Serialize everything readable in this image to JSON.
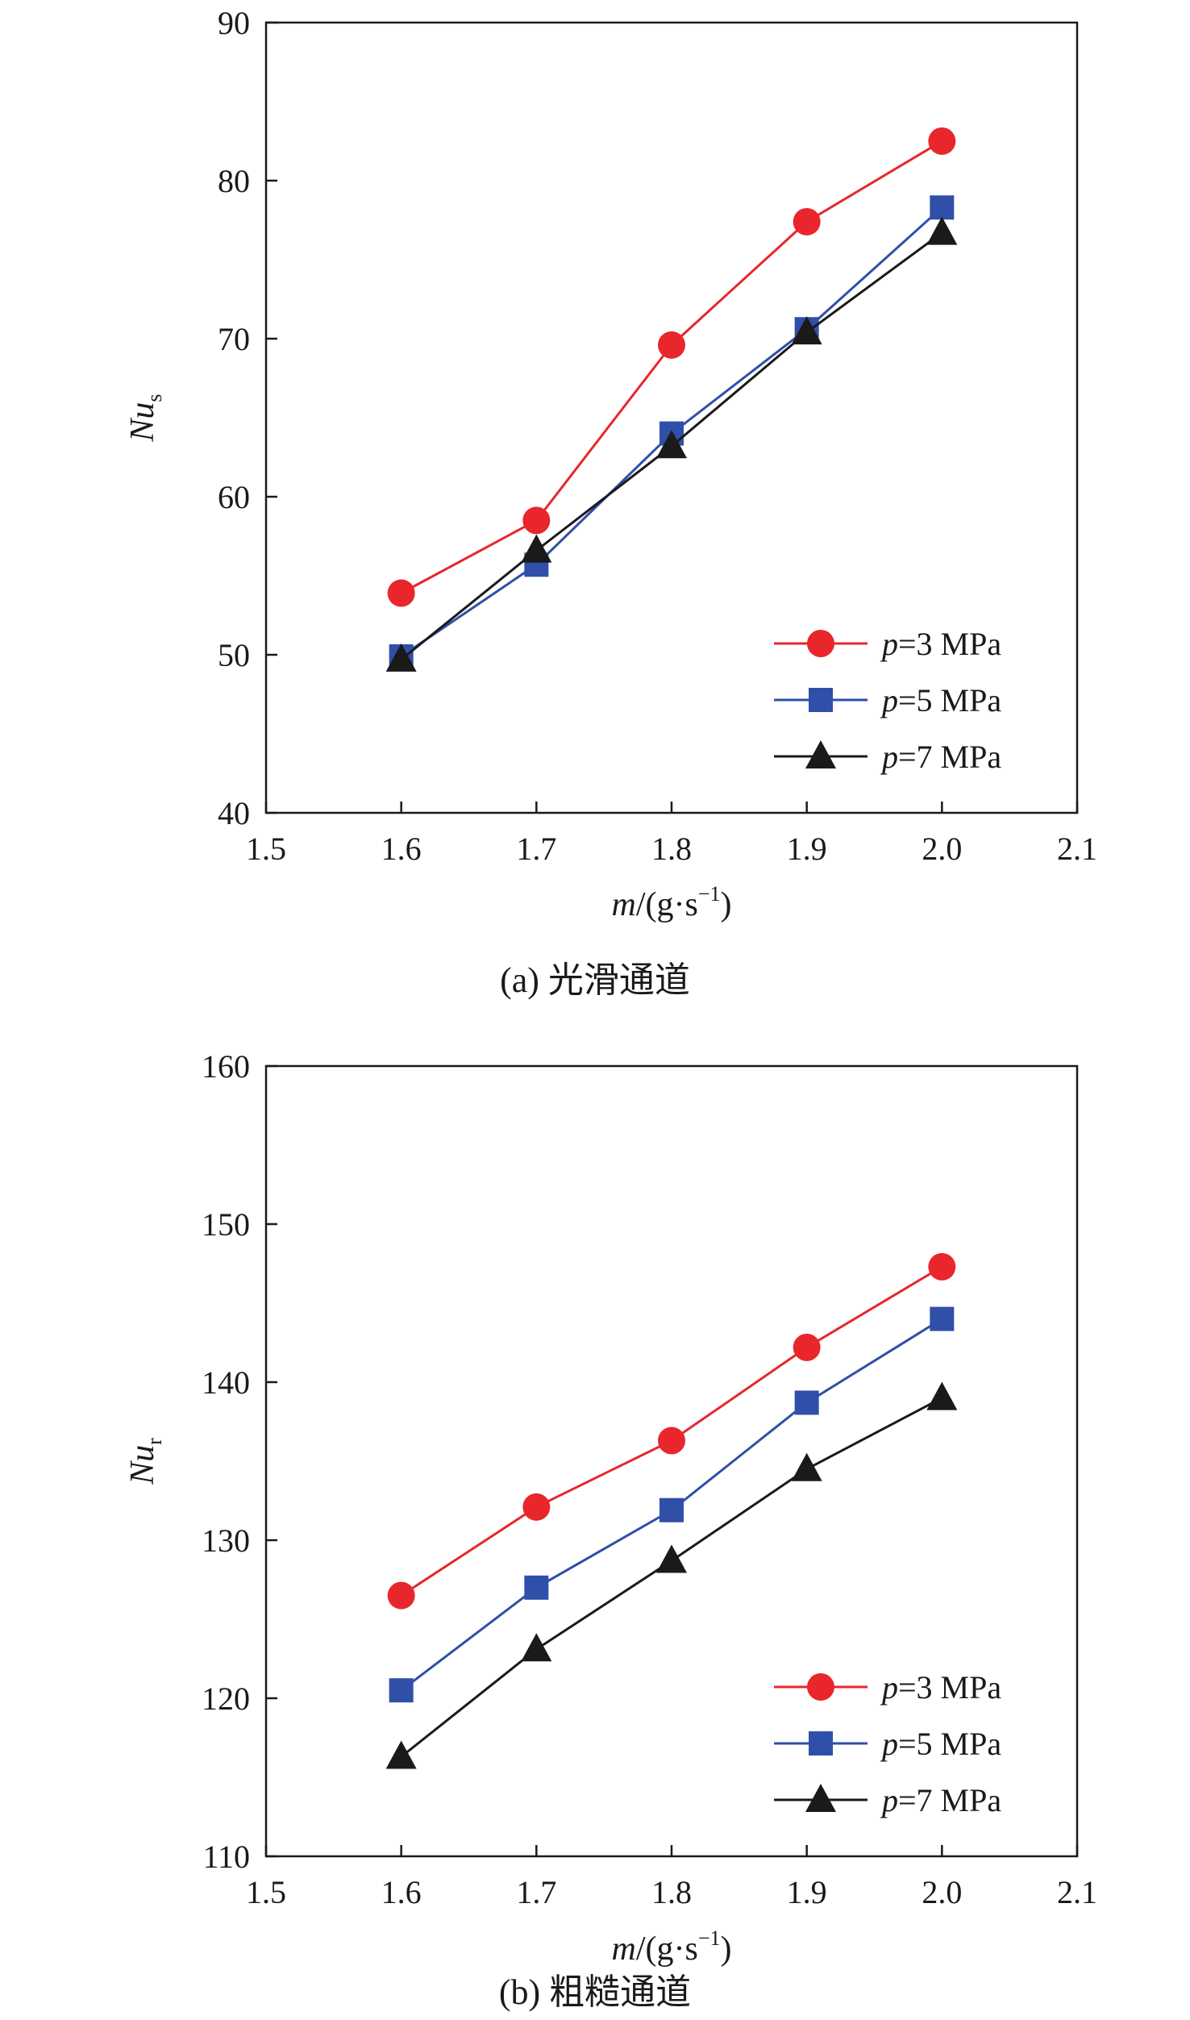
{
  "colors": {
    "series_3mpa": "#e8262b",
    "series_5mpa": "#2f4fa8",
    "series_7mpa": "#1a1a1a"
  },
  "chart_data": [
    {
      "type": "line",
      "caption": "(a) 光滑通道",
      "xlabel_var": "m",
      "xlabel_unit": "/(g·s",
      "xlabel_exp": "−1",
      "xlabel_close": ")",
      "ylabel_var": "Nu",
      "ylabel_sub": "s",
      "xlim": [
        1.5,
        2.1
      ],
      "ylim": [
        40,
        90
      ],
      "xticks": [
        "1.5",
        "1.6",
        "1.7",
        "1.8",
        "1.9",
        "2.0",
        "2.1"
      ],
      "yticks": [
        "40",
        "50",
        "60",
        "70",
        "80",
        "90"
      ],
      "x": [
        1.6,
        1.7,
        1.8,
        1.9,
        2.0
      ],
      "legend_position": "bottom-right",
      "series": [
        {
          "name_var": "p",
          "name_rest": "=3 MPa",
          "marker": "circle",
          "color_key": "series_3mpa",
          "values": [
            53.9,
            58.5,
            69.6,
            77.4,
            82.5
          ]
        },
        {
          "name_var": "p",
          "name_rest": "=5 MPa",
          "marker": "square",
          "color_key": "series_5mpa",
          "values": [
            49.9,
            55.7,
            64.0,
            70.6,
            78.3
          ]
        },
        {
          "name_var": "p",
          "name_rest": "=7 MPa",
          "marker": "triangle",
          "color_key": "series_7mpa",
          "values": [
            49.7,
            56.6,
            63.2,
            70.4,
            76.7
          ]
        }
      ]
    },
    {
      "type": "line",
      "caption": "(b) 粗糙通道",
      "xlabel_var": "m",
      "xlabel_unit": "/(g·s",
      "xlabel_exp": "−1",
      "xlabel_close": ")",
      "ylabel_var": "Nu",
      "ylabel_sub": "r",
      "xlim": [
        1.5,
        2.1
      ],
      "ylim": [
        110,
        160
      ],
      "xticks": [
        "1.5",
        "1.6",
        "1.7",
        "1.8",
        "1.9",
        "2.0",
        "2.1"
      ],
      "yticks": [
        "110",
        "120",
        "130",
        "140",
        "150",
        "160"
      ],
      "x": [
        1.6,
        1.7,
        1.8,
        1.9,
        2.0
      ],
      "legend_position": "bottom-right",
      "series": [
        {
          "name_var": "p",
          "name_rest": "=3 MPa",
          "marker": "circle",
          "color_key": "series_3mpa",
          "values": [
            126.5,
            132.1,
            136.3,
            142.2,
            147.3
          ]
        },
        {
          "name_var": "p",
          "name_rest": "=5 MPa",
          "marker": "square",
          "color_key": "series_5mpa",
          "values": [
            120.5,
            127.0,
            131.9,
            138.7,
            144.0
          ]
        },
        {
          "name_var": "p",
          "name_rest": "=7 MPa",
          "marker": "triangle",
          "color_key": "series_7mpa",
          "values": [
            116.3,
            123.1,
            128.7,
            134.5,
            139.0
          ]
        }
      ]
    }
  ]
}
